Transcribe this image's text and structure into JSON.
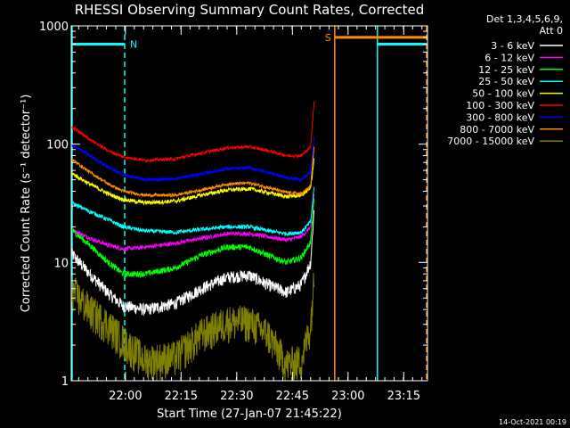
{
  "chart_data": {
    "type": "line",
    "title": "RHESSI Observing Summary Count Rates, Corrected",
    "xlabel": "Start Time (27-Jan-07 21:45:22)",
    "ylabel": "Corrected Count Rate (s⁻¹ detector⁻¹)",
    "yscale": "log",
    "ylim": [
      1,
      1000
    ],
    "xlim_minutes_after_start": [
      0,
      96
    ],
    "x_ticks": [
      "22:00",
      "22:15",
      "22:30",
      "22:45",
      "23:00",
      "23:15"
    ],
    "x_tick_minutes": [
      14.6,
      29.6,
      44.6,
      59.6,
      74.6,
      89.6
    ],
    "y_ticks": [
      "1",
      "10",
      "100",
      "1000"
    ],
    "y_tick_values": [
      1,
      10,
      100,
      1000
    ],
    "legend_header": [
      "Det 1,3,4,5,6,9,",
      "Att 0"
    ],
    "legend_placement": "right",
    "series": [
      {
        "name": "3 - 6 keV",
        "color": "#ffffff",
        "noise": 0.12,
        "x": [
          0,
          5,
          10,
          14,
          20,
          28,
          35,
          42,
          48,
          53,
          58,
          62,
          64.5,
          65.5
        ],
        "y": [
          12,
          8,
          5.5,
          4.3,
          4.0,
          4.5,
          6.0,
          7.5,
          7.8,
          6.5,
          5.6,
          6.5,
          10,
          30
        ]
      },
      {
        "name": "6 - 12 keV",
        "color": "#ff00ff",
        "noise": 0.04,
        "x": [
          0,
          5,
          10,
          14,
          20,
          28,
          35,
          42,
          48,
          53,
          58,
          62,
          64.5,
          65.5
        ],
        "y": [
          19,
          16,
          14,
          13,
          13.5,
          14.5,
          16,
          17.5,
          17.5,
          16.5,
          15.5,
          16.5,
          20,
          40
        ]
      },
      {
        "name": "12 - 25 keV",
        "color": "#00ff00",
        "noise": 0.06,
        "x": [
          0,
          5,
          10,
          14,
          20,
          28,
          35,
          42,
          48,
          53,
          58,
          62,
          64.5,
          65.5
        ],
        "y": [
          19,
          14,
          10,
          8,
          8,
          9,
          11.5,
          13.5,
          13.5,
          11.5,
          10,
          11,
          15,
          35
        ]
      },
      {
        "name": "25 - 50 keV",
        "color": "#00ffff",
        "noise": 0.04,
        "x": [
          0,
          5,
          10,
          14,
          20,
          28,
          35,
          42,
          48,
          53,
          58,
          62,
          64.5,
          65.5
        ],
        "y": [
          32,
          27,
          23,
          20,
          18.5,
          18,
          19,
          20,
          20,
          18.5,
          17.5,
          18,
          22,
          45
        ]
      },
      {
        "name": "50 - 100 keV",
        "color": "#ffff00",
        "noise": 0.04,
        "x": [
          0,
          5,
          10,
          14,
          20,
          28,
          35,
          42,
          48,
          53,
          58,
          62,
          64.5,
          65.5
        ],
        "y": [
          57,
          46,
          38,
          34,
          32,
          33,
          37,
          41,
          42,
          39,
          36,
          37,
          42,
          80
        ]
      },
      {
        "name": "100 - 300 keV",
        "color": "#ff0000",
        "noise": 0.03,
        "x": [
          0,
          5,
          10,
          14,
          20,
          28,
          35,
          42,
          48,
          53,
          58,
          62,
          64.5,
          65.5
        ],
        "y": [
          140,
          110,
          88,
          78,
          73,
          75,
          84,
          93,
          95,
          88,
          80,
          80,
          95,
          240
        ]
      },
      {
        "name": "300 - 800 keV",
        "color": "#0000ff",
        "noise": 0.03,
        "x": [
          0,
          5,
          10,
          14,
          20,
          28,
          35,
          42,
          48,
          53,
          58,
          62,
          64.5,
          65.5
        ],
        "y": [
          100,
          80,
          64,
          55,
          50,
          51,
          56,
          62,
          63,
          58,
          52,
          50,
          58,
          120
        ]
      },
      {
        "name": "800 - 7000 keV",
        "color": "#ff8c00",
        "noise": 0.03,
        "x": [
          0,
          5,
          10,
          14,
          20,
          28,
          35,
          42,
          48,
          53,
          58,
          62,
          64.5,
          65.5
        ],
        "y": [
          75,
          58,
          46,
          40,
          37,
          37,
          41,
          46,
          47,
          43,
          39,
          38,
          44,
          100
        ]
      },
      {
        "name": "7000 - 15000 keV",
        "color": "#808000",
        "noise": 0.35,
        "x": [
          0,
          5,
          10,
          14,
          20,
          28,
          35,
          42,
          48,
          53,
          58,
          62,
          64.5,
          65.5
        ],
        "y": [
          6,
          4,
          3,
          2.2,
          1.5,
          1.6,
          2.5,
          3.2,
          3.2,
          2.5,
          1.4,
          1.5,
          3,
          8
        ]
      }
    ],
    "status_bars": [
      {
        "label": "N",
        "color": "#00ffff",
        "x": [
          0,
          14.4
        ],
        "y": 700
      },
      {
        "label": "S",
        "color": "#ff8c00",
        "x": [
          71,
          96
        ],
        "y": 800
      },
      {
        "label": "",
        "color": "#00ffff",
        "x": [
          82.5,
          96
        ],
        "y": 700
      }
    ],
    "vertical_markers": [
      {
        "color": "#00ffff",
        "x": 0,
        "style": "solid"
      },
      {
        "color": "#00ffff",
        "x": 14.4,
        "style": "dashed"
      },
      {
        "color": "#ff8c00",
        "x": 71,
        "style": "solid"
      },
      {
        "color": "#00ffff",
        "x": 82.5,
        "style": "solid"
      },
      {
        "color": "#ff8c00",
        "x": 96,
        "style": "dashed"
      }
    ]
  },
  "footer": {
    "timestamp": "14-Oct-2021 00:19"
  }
}
